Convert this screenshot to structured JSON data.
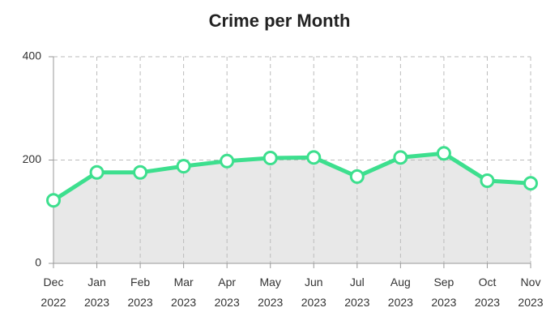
{
  "chart_data": {
    "type": "line",
    "title": "Crime per Month",
    "categories": [
      "Dec\n2022",
      "Jan\n2023",
      "Feb\n2023",
      "Mar\n2023",
      "Apr\n2023",
      "May\n2023",
      "Jun\n2023",
      "Jul\n2023",
      "Aug\n2023",
      "Sep\n2023",
      "Oct\n2023",
      "Nov\n2023"
    ],
    "values": [
      122,
      176,
      176,
      188,
      198,
      204,
      205,
      168,
      205,
      213,
      160,
      155
    ],
    "color": "#3ddf8e",
    "area_color": "#e8e8e8",
    "ylim": [
      0,
      400
    ],
    "yticks": [
      0,
      200,
      400
    ],
    "grid": true
  }
}
